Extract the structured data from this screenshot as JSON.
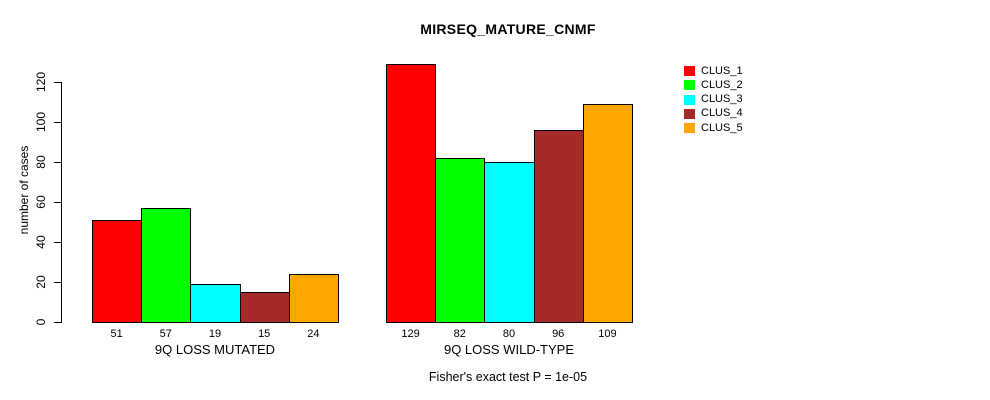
{
  "chart_data": {
    "type": "bar",
    "title": "MIRSEQ_MATURE_CNMF",
    "ylabel": "number of cases",
    "footnote": "Fisher's exact test P = 1e-05",
    "groups": [
      {
        "label": "9Q LOSS MUTATED"
      },
      {
        "label": "9Q LOSS WILD-TYPE"
      }
    ],
    "series": [
      {
        "name": "CLUS_1",
        "color": "#FF0000",
        "values": [
          51,
          129
        ]
      },
      {
        "name": "CLUS_2",
        "color": "#00FF00",
        "values": [
          57,
          82
        ]
      },
      {
        "name": "CLUS_3",
        "color": "#00FFFF",
        "values": [
          19,
          80
        ]
      },
      {
        "name": "CLUS_4",
        "color": "#A52A2A",
        "values": [
          15,
          96
        ]
      },
      {
        "name": "CLUS_5",
        "color": "#FFA500",
        "values": [
          24,
          109
        ]
      }
    ],
    "yticks": [
      0,
      20,
      40,
      60,
      80,
      100,
      120
    ],
    "ylim": [
      0,
      130
    ],
    "grid": false,
    "show_bar_value_labels": true,
    "legend_position": "top-right",
    "axis_color": "#000000",
    "background_color": "#FFFFFF"
  }
}
